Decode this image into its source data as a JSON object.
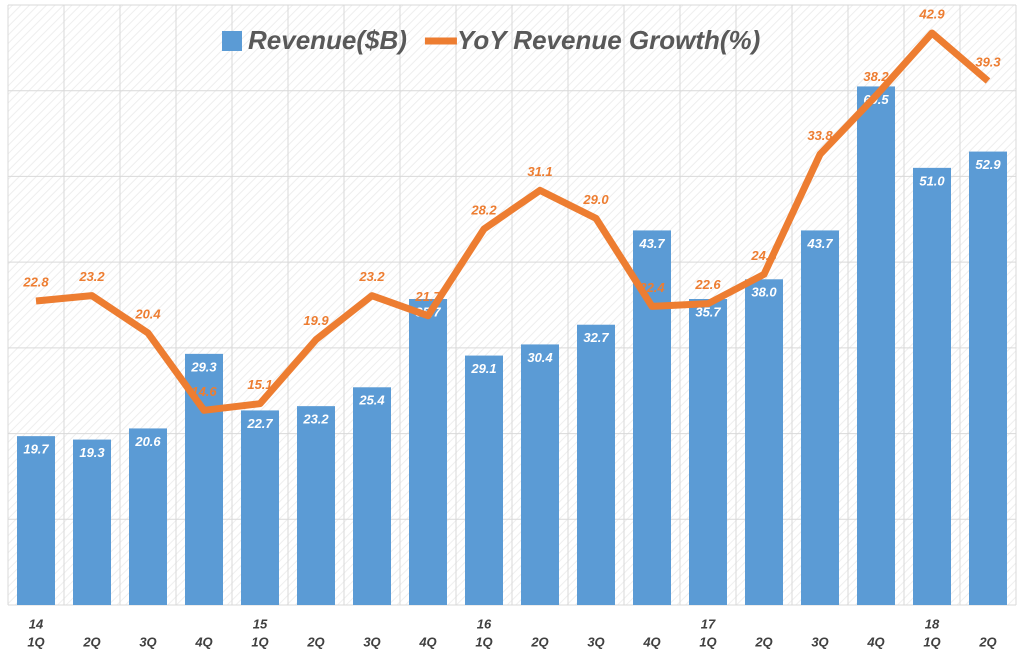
{
  "chart_data": {
    "type": "bar-line",
    "categories": [
      "1Q",
      "2Q",
      "3Q",
      "4Q",
      "1Q",
      "2Q",
      "3Q",
      "4Q",
      "1Q",
      "2Q",
      "3Q",
      "4Q",
      "1Q",
      "2Q",
      "3Q",
      "4Q",
      "1Q",
      "2Q"
    ],
    "category_groups": [
      "14",
      null,
      null,
      null,
      "15",
      null,
      null,
      null,
      "16",
      null,
      null,
      null,
      "17",
      null,
      null,
      null,
      "18",
      null
    ],
    "series": [
      {
        "name": "Revenue($B)",
        "type": "bar",
        "color": "#5b9bd5",
        "values": [
          19.7,
          19.3,
          20.6,
          29.3,
          22.7,
          23.2,
          25.4,
          35.7,
          29.1,
          30.4,
          32.7,
          43.7,
          35.7,
          38.0,
          43.7,
          60.5,
          51.0,
          52.9
        ],
        "value_labels": [
          "19.7",
          "19.3",
          "20.6",
          "29.3",
          "22.7",
          "23.2",
          "25.4",
          "35.7",
          "29.1",
          "30.4",
          "32.7",
          "43.7",
          "35.7",
          "38.0",
          "43.7",
          "60.5",
          "51.0",
          "52.9"
        ]
      },
      {
        "name": "YoY Revenue Growth(%)",
        "type": "line",
        "axis": "y2",
        "color": "#ed7d31",
        "values": [
          22.8,
          23.2,
          20.4,
          14.6,
          15.1,
          19.9,
          23.2,
          21.7,
          28.2,
          31.1,
          29.0,
          22.4,
          22.6,
          24.8,
          33.8,
          38.2,
          42.9,
          39.3
        ],
        "value_labels": [
          "22.8",
          "23.2",
          "20.4",
          "14.6",
          "15.1",
          "19.9",
          "23.2",
          "21.7",
          "28.2",
          "31.1",
          "29.0",
          "22.4",
          "22.6",
          "24.8",
          "33.8",
          "38.2",
          "42.9",
          "39.3"
        ]
      }
    ],
    "ylim": [
      0,
      70
    ],
    "yticks": [
      0,
      10,
      20,
      30,
      40,
      50,
      60,
      70
    ],
    "y2lim": [
      0,
      45
    ],
    "grid": true
  }
}
